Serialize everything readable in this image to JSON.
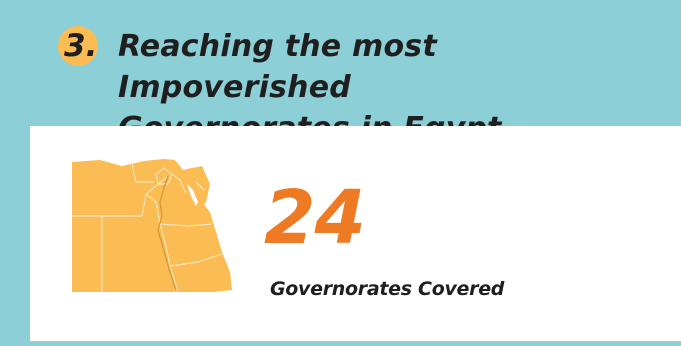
{
  "header": {
    "number": "3.",
    "title_line1": "Reaching the most Impoverished",
    "title_line2": "Governorates in Egypt"
  },
  "stat": {
    "value": "24",
    "label": "Governorates Covered"
  },
  "colors": {
    "background": "#8ccfd6",
    "accent_circle": "#fbbd53",
    "map_fill": "#fbbd53",
    "stat_value": "#ee7b24",
    "panel": "#ffffff",
    "text": "#1f1f1f"
  },
  "icons": {
    "map": "egypt-map-icon"
  }
}
